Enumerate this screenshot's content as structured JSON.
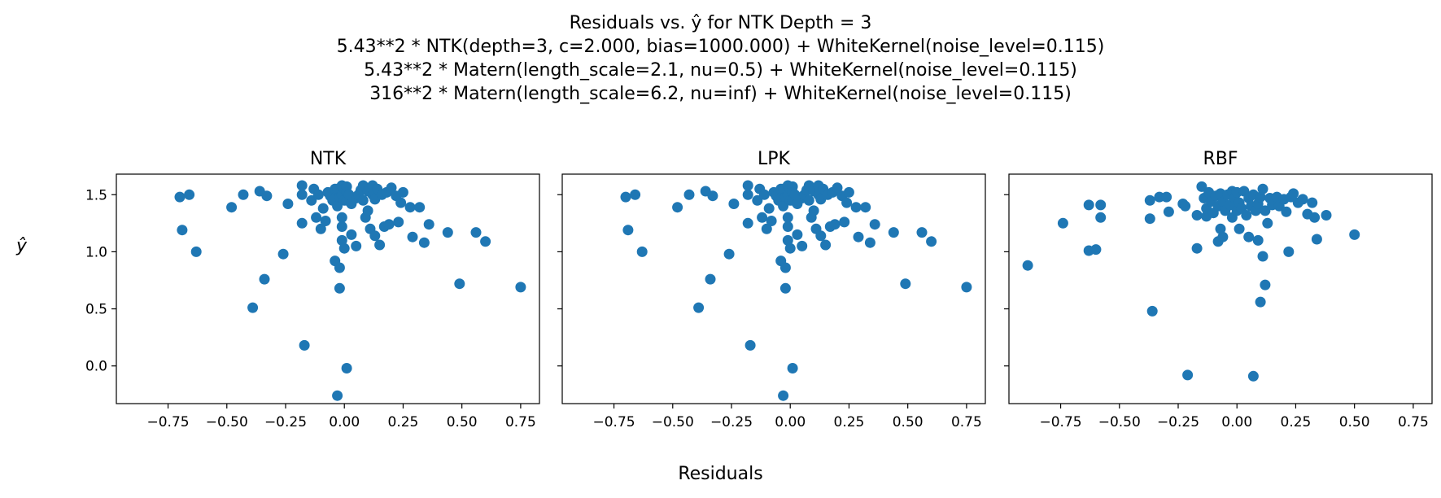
{
  "chart_data": {
    "type": "scatter",
    "title_lines": [
      "Residuals vs. ŷ for NTK Depth = 3",
      "5.43**2 * NTK(depth=3, c=2.000, bias=1000.000) + WhiteKernel(noise_level=0.115)",
      "5.43**2 * Matern(length_scale=2.1, nu=0.5) + WhiteKernel(noise_level=0.115)",
      "316**2 * Matern(length_scale=6.2, nu=inf) + WhiteKernel(noise_level=0.115)"
    ],
    "xlabel": "Residuals",
    "ylabel": "ŷ",
    "marker_color": "#1f77b4",
    "shared_y": true,
    "xlim": [
      -0.97,
      0.83
    ],
    "ylim": [
      -0.33,
      1.68
    ],
    "xticks": [
      -0.75,
      -0.5,
      -0.25,
      0.0,
      0.25,
      0.5,
      0.75
    ],
    "xtick_labels": [
      "−0.75",
      "−0.50",
      "−0.25",
      "0.00",
      "0.25",
      "0.50",
      "0.75"
    ],
    "yticks": [
      0.0,
      0.5,
      1.0,
      1.5
    ],
    "ytick_labels": [
      "0.0",
      "0.5",
      "1.0",
      "1.5"
    ],
    "panels": [
      {
        "title": "NTK",
        "points": [
          [
            -0.7,
            1.48
          ],
          [
            -0.69,
            1.19
          ],
          [
            -0.66,
            1.5
          ],
          [
            -0.63,
            1.0
          ],
          [
            -0.48,
            1.39
          ],
          [
            -0.43,
            1.5
          ],
          [
            -0.39,
            0.51
          ],
          [
            -0.36,
            1.53
          ],
          [
            -0.34,
            0.76
          ],
          [
            -0.33,
            1.49
          ],
          [
            -0.26,
            0.98
          ],
          [
            -0.24,
            1.42
          ],
          [
            -0.18,
            1.58
          ],
          [
            -0.18,
            1.5
          ],
          [
            -0.18,
            1.25
          ],
          [
            -0.17,
            0.18
          ],
          [
            -0.14,
            1.45
          ],
          [
            -0.13,
            1.55
          ],
          [
            -0.12,
            1.3
          ],
          [
            -0.11,
            1.5
          ],
          [
            -0.1,
            1.2
          ],
          [
            -0.09,
            1.38
          ],
          [
            -0.08,
            1.27
          ],
          [
            -0.07,
            1.52
          ],
          [
            -0.06,
            1.49
          ],
          [
            -0.05,
            1.45
          ],
          [
            -0.04,
            1.55
          ],
          [
            -0.04,
            0.92
          ],
          [
            -0.03,
            1.55
          ],
          [
            -0.03,
            1.4
          ],
          [
            -0.03,
            -0.26
          ],
          [
            -0.02,
            1.48
          ],
          [
            -0.02,
            0.86
          ],
          [
            -0.02,
            0.68
          ],
          [
            -0.01,
            1.58
          ],
          [
            -0.01,
            1.5
          ],
          [
            -0.01,
            1.3
          ],
          [
            -0.01,
            1.22
          ],
          [
            -0.01,
            1.1
          ],
          [
            0.0,
            1.55
          ],
          [
            0.0,
            1.45
          ],
          [
            0.0,
            1.03
          ],
          [
            0.01,
            1.57
          ],
          [
            0.01,
            1.52
          ],
          [
            0.01,
            1.45
          ],
          [
            0.01,
            -0.02
          ],
          [
            0.02,
            1.5
          ],
          [
            0.03,
            1.42
          ],
          [
            0.03,
            1.15
          ],
          [
            0.05,
            1.47
          ],
          [
            0.05,
            1.05
          ],
          [
            0.06,
            1.5
          ],
          [
            0.07,
            1.54
          ],
          [
            0.08,
            1.58
          ],
          [
            0.08,
            1.45
          ],
          [
            0.09,
            1.3
          ],
          [
            0.1,
            1.53
          ],
          [
            0.1,
            1.36
          ],
          [
            0.11,
            1.2
          ],
          [
            0.12,
            1.58
          ],
          [
            0.12,
            1.5
          ],
          [
            0.13,
            1.46
          ],
          [
            0.13,
            1.14
          ],
          [
            0.14,
            1.55
          ],
          [
            0.15,
            1.06
          ],
          [
            0.16,
            1.5
          ],
          [
            0.17,
            1.22
          ],
          [
            0.18,
            1.52
          ],
          [
            0.19,
            1.24
          ],
          [
            0.2,
            1.56
          ],
          [
            0.22,
            1.49
          ],
          [
            0.23,
            1.26
          ],
          [
            0.24,
            1.43
          ],
          [
            0.25,
            1.52
          ],
          [
            0.28,
            1.39
          ],
          [
            0.29,
            1.13
          ],
          [
            0.32,
            1.39
          ],
          [
            0.34,
            1.08
          ],
          [
            0.36,
            1.24
          ],
          [
            0.44,
            1.17
          ],
          [
            0.49,
            0.72
          ],
          [
            0.56,
            1.17
          ],
          [
            0.6,
            1.09
          ],
          [
            0.75,
            0.69
          ]
        ]
      },
      {
        "title": "LPK",
        "points": [
          [
            -0.7,
            1.48
          ],
          [
            -0.69,
            1.19
          ],
          [
            -0.66,
            1.5
          ],
          [
            -0.63,
            1.0
          ],
          [
            -0.48,
            1.39
          ],
          [
            -0.43,
            1.5
          ],
          [
            -0.39,
            0.51
          ],
          [
            -0.36,
            1.53
          ],
          [
            -0.34,
            0.76
          ],
          [
            -0.33,
            1.49
          ],
          [
            -0.26,
            0.98
          ],
          [
            -0.24,
            1.42
          ],
          [
            -0.18,
            1.58
          ],
          [
            -0.18,
            1.5
          ],
          [
            -0.18,
            1.25
          ],
          [
            -0.17,
            0.18
          ],
          [
            -0.14,
            1.45
          ],
          [
            -0.13,
            1.55
          ],
          [
            -0.12,
            1.3
          ],
          [
            -0.11,
            1.5
          ],
          [
            -0.1,
            1.2
          ],
          [
            -0.09,
            1.38
          ],
          [
            -0.08,
            1.27
          ],
          [
            -0.07,
            1.52
          ],
          [
            -0.06,
            1.49
          ],
          [
            -0.05,
            1.45
          ],
          [
            -0.04,
            1.55
          ],
          [
            -0.04,
            0.92
          ],
          [
            -0.03,
            1.55
          ],
          [
            -0.03,
            1.4
          ],
          [
            -0.03,
            -0.26
          ],
          [
            -0.02,
            1.48
          ],
          [
            -0.02,
            0.86
          ],
          [
            -0.02,
            0.68
          ],
          [
            -0.01,
            1.58
          ],
          [
            -0.01,
            1.5
          ],
          [
            -0.01,
            1.3
          ],
          [
            -0.01,
            1.22
          ],
          [
            -0.01,
            1.1
          ],
          [
            0.0,
            1.55
          ],
          [
            0.0,
            1.45
          ],
          [
            0.0,
            1.03
          ],
          [
            0.01,
            1.57
          ],
          [
            0.01,
            1.52
          ],
          [
            0.01,
            1.45
          ],
          [
            0.01,
            -0.02
          ],
          [
            0.02,
            1.5
          ],
          [
            0.03,
            1.42
          ],
          [
            0.03,
            1.15
          ],
          [
            0.05,
            1.47
          ],
          [
            0.05,
            1.05
          ],
          [
            0.06,
            1.5
          ],
          [
            0.07,
            1.54
          ],
          [
            0.08,
            1.58
          ],
          [
            0.08,
            1.45
          ],
          [
            0.09,
            1.3
          ],
          [
            0.1,
            1.53
          ],
          [
            0.1,
            1.36
          ],
          [
            0.11,
            1.2
          ],
          [
            0.12,
            1.58
          ],
          [
            0.12,
            1.5
          ],
          [
            0.13,
            1.46
          ],
          [
            0.13,
            1.14
          ],
          [
            0.14,
            1.55
          ],
          [
            0.15,
            1.06
          ],
          [
            0.16,
            1.5
          ],
          [
            0.17,
            1.22
          ],
          [
            0.18,
            1.52
          ],
          [
            0.19,
            1.24
          ],
          [
            0.2,
            1.56
          ],
          [
            0.22,
            1.49
          ],
          [
            0.23,
            1.26
          ],
          [
            0.24,
            1.43
          ],
          [
            0.25,
            1.52
          ],
          [
            0.28,
            1.39
          ],
          [
            0.29,
            1.13
          ],
          [
            0.32,
            1.39
          ],
          [
            0.34,
            1.08
          ],
          [
            0.36,
            1.24
          ],
          [
            0.44,
            1.17
          ],
          [
            0.49,
            0.72
          ],
          [
            0.56,
            1.17
          ],
          [
            0.6,
            1.09
          ],
          [
            0.75,
            0.69
          ]
        ]
      },
      {
        "title": "RBF",
        "points": [
          [
            -0.89,
            0.88
          ],
          [
            -0.74,
            1.25
          ],
          [
            -0.63,
            1.41
          ],
          [
            -0.63,
            1.01
          ],
          [
            -0.6,
            1.02
          ],
          [
            -0.58,
            1.41
          ],
          [
            -0.58,
            1.3
          ],
          [
            -0.37,
            1.45
          ],
          [
            -0.37,
            1.29
          ],
          [
            -0.36,
            0.48
          ],
          [
            -0.33,
            1.48
          ],
          [
            -0.3,
            1.48
          ],
          [
            -0.29,
            1.35
          ],
          [
            -0.23,
            1.42
          ],
          [
            -0.22,
            1.4
          ],
          [
            -0.21,
            -0.08
          ],
          [
            -0.17,
            1.32
          ],
          [
            -0.17,
            1.03
          ],
          [
            -0.15,
            1.57
          ],
          [
            -0.14,
            1.47
          ],
          [
            -0.13,
            1.38
          ],
          [
            -0.13,
            1.31
          ],
          [
            -0.12,
            1.52
          ],
          [
            -0.11,
            1.44
          ],
          [
            -0.1,
            1.34
          ],
          [
            -0.09,
            1.49
          ],
          [
            -0.08,
            1.4
          ],
          [
            -0.08,
            1.09
          ],
          [
            -0.07,
            1.51
          ],
          [
            -0.07,
            1.2
          ],
          [
            -0.06,
            1.44
          ],
          [
            -0.06,
            1.13
          ],
          [
            -0.05,
            1.36
          ],
          [
            -0.04,
            1.5
          ],
          [
            -0.03,
            1.41
          ],
          [
            -0.02,
            1.53
          ],
          [
            -0.02,
            1.3
          ],
          [
            -0.01,
            1.47
          ],
          [
            0.0,
            1.52
          ],
          [
            0.0,
            1.36
          ],
          [
            0.01,
            1.43
          ],
          [
            0.01,
            1.2
          ],
          [
            0.02,
            1.38
          ],
          [
            0.03,
            1.53
          ],
          [
            0.04,
            1.32
          ],
          [
            0.05,
            1.47
          ],
          [
            0.05,
            1.13
          ],
          [
            0.06,
            1.4
          ],
          [
            0.07,
            1.5
          ],
          [
            0.07,
            -0.09
          ],
          [
            0.08,
            1.36
          ],
          [
            0.09,
            1.42
          ],
          [
            0.09,
            1.1
          ],
          [
            0.1,
            1.48
          ],
          [
            0.1,
            0.56
          ],
          [
            0.11,
            1.55
          ],
          [
            0.11,
            0.96
          ],
          [
            0.12,
            1.36
          ],
          [
            0.12,
            0.71
          ],
          [
            0.13,
            1.25
          ],
          [
            0.14,
            1.47
          ],
          [
            0.15,
            1.41
          ],
          [
            0.17,
            1.48
          ],
          [
            0.18,
            1.4
          ],
          [
            0.2,
            1.46
          ],
          [
            0.21,
            1.35
          ],
          [
            0.22,
            1.0
          ],
          [
            0.23,
            1.48
          ],
          [
            0.24,
            1.51
          ],
          [
            0.26,
            1.43
          ],
          [
            0.28,
            1.46
          ],
          [
            0.3,
            1.33
          ],
          [
            0.32,
            1.43
          ],
          [
            0.33,
            1.3
          ],
          [
            0.34,
            1.11
          ],
          [
            0.38,
            1.32
          ],
          [
            0.5,
            1.15
          ]
        ]
      }
    ]
  }
}
